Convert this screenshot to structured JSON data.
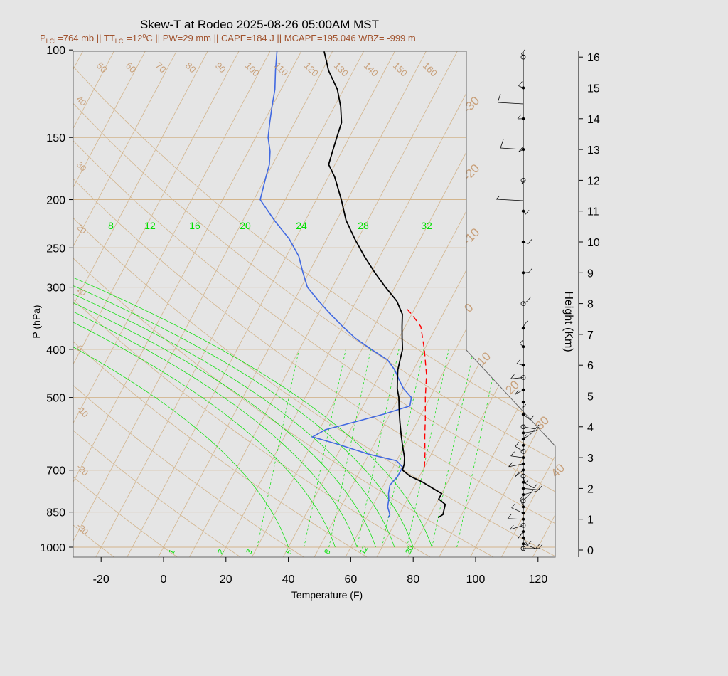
{
  "title": "Skew-T at Rodeo 2025-08-26 05:00AM MST",
  "subtitle": {
    "p_lcl": "=764 mb || T",
    "t_lcl": "=12",
    "rest": "C || PW=29 mm || CAPE=184 J || MCAPE=195.046 WBZ= -999 m",
    "p_sym": "P",
    "t_sym": "T",
    "lcl_sub": "LCL",
    "deg": "o"
  },
  "colors": {
    "background": "#e5e5e5",
    "temperature": "#000000",
    "dewpoint": "#4169e1",
    "parcel": "#ff0000",
    "isotherm_grid": "#d2b48c",
    "mixing_ratio": "#00e000",
    "annotation": "#a0522d"
  },
  "chart_data": {
    "type": "skew-t",
    "xlabel": "Temperature (F)",
    "ylabel": "P (hPa)",
    "y2label": "Height (Km)",
    "x_ticks": [
      "-20",
      "0",
      "20",
      "40",
      "60",
      "80",
      "100",
      "120"
    ],
    "x_tick_values": [
      -20,
      0,
      20,
      40,
      60,
      80,
      100,
      120
    ],
    "p_ticks": [
      "100",
      "150",
      "200",
      "250",
      "300",
      "400",
      "500",
      "700",
      "850",
      "1000"
    ],
    "p_tick_values": [
      100,
      150,
      200,
      250,
      300,
      400,
      500,
      700,
      850,
      1000
    ],
    "height_ticks": [
      "0",
      "1",
      "2",
      "3",
      "4",
      "5",
      "6",
      "7",
      "8",
      "9",
      "10",
      "11",
      "12",
      "13",
      "14",
      "15",
      "16"
    ],
    "isotherm_labels_f": [
      "50",
      "60",
      "70",
      "80",
      "90",
      "100",
      "110",
      "120",
      "130",
      "140",
      "150",
      "160"
    ],
    "isotherm_label_values": [
      50,
      60,
      70,
      80,
      90,
      100,
      110,
      120,
      130,
      140,
      150,
      160
    ],
    "isotherm_left_labels": [
      "40",
      "30",
      "20",
      "10",
      "0",
      "-10",
      "-20",
      "-30"
    ],
    "isotherm_right_labels": [
      "-30",
      "-20",
      "-10",
      "0",
      "10",
      "20",
      "30",
      "40"
    ],
    "mixing_ratio_top_labels": [
      "8",
      "12",
      "16",
      "20",
      "24",
      "28",
      "32"
    ],
    "mixing_ratio_bottom_labels": [
      "1",
      "2",
      "3",
      "5",
      "8",
      "12",
      "20"
    ],
    "temperature_profile": {
      "p": [
        872,
        860,
        820,
        800,
        780,
        760,
        740,
        720,
        700,
        680,
        660,
        640,
        620,
        600,
        580,
        560,
        540,
        520,
        500,
        480,
        460,
        440,
        420,
        400,
        380,
        360,
        340,
        320,
        300,
        280,
        260,
        240,
        220,
        200,
        180,
        170,
        160,
        150,
        140,
        130,
        120,
        110,
        100
      ],
      "t": [
        83.0,
        84.0,
        83.0,
        80.0,
        80.0,
        76.0,
        72.0,
        67.0,
        63.5,
        63.0,
        62.0,
        60.5,
        59.0,
        57.5,
        56.0,
        54.5,
        53.0,
        51.5,
        50.0,
        48.0,
        46.5,
        45.0,
        44.0,
        43.0,
        41.0,
        39.0,
        37.0,
        33.0,
        27.0,
        21.0,
        15.0,
        9.0,
        3.0,
        -2.0,
        -8.0,
        -12.0,
        -13.0,
        -14.0,
        -15.0,
        -18.0,
        -22.0,
        -28.0,
        -33.0
      ]
    },
    "dewpoint_profile": {
      "p": [
        872,
        860,
        830,
        800,
        780,
        750,
        720,
        690,
        670,
        650,
        620,
        600,
        580,
        560,
        540,
        520,
        500,
        480,
        460,
        440,
        420,
        400,
        380,
        360,
        340,
        320,
        300,
        280,
        260,
        240,
        220,
        200,
        180,
        170,
        160,
        150,
        140,
        130,
        120,
        110,
        100
      ],
      "td": [
        67.0,
        67.0,
        65.0,
        64.0,
        63.0,
        62.0,
        63.0,
        63.0,
        60.0,
        50.0,
        38.0,
        29.0,
        32.0,
        40.0,
        48.0,
        55.0,
        54.0,
        50.0,
        47.0,
        44.0,
        40.0,
        33.0,
        26.0,
        20.0,
        14.0,
        8.0,
        2.0,
        -2.0,
        -6.0,
        -12.0,
        -20.0,
        -28.0,
        -30.0,
        -31.0,
        -33.0,
        -36.0,
        -38.0,
        -40.0,
        -42.0,
        -45.0,
        -48.0
      ]
    },
    "parcel_profile": {
      "p": [
        690,
        650,
        600,
        550,
        500,
        450,
        400,
        360,
        340,
        330
      ],
      "t": [
        70.0,
        68.0,
        65.0,
        62.0,
        58.5,
        55.0,
        50.0,
        45.0,
        40.0,
        37.0
      ]
    },
    "wind_heights_km": [
      0.05,
      0.2,
      0.4,
      0.6,
      0.8,
      1.0,
      1.2,
      1.4,
      1.6,
      1.8,
      2.0,
      2.2,
      2.4,
      2.6,
      2.8,
      3.0,
      3.2,
      3.4,
      3.6,
      3.8,
      4.0,
      4.4,
      4.8,
      5.2,
      5.6,
      6.0,
      6.6,
      7.2,
      8.0,
      9.0,
      10.0,
      11.0,
      12.0,
      13.0,
      14.0,
      15.0,
      16.0
    ],
    "grid": true
  }
}
